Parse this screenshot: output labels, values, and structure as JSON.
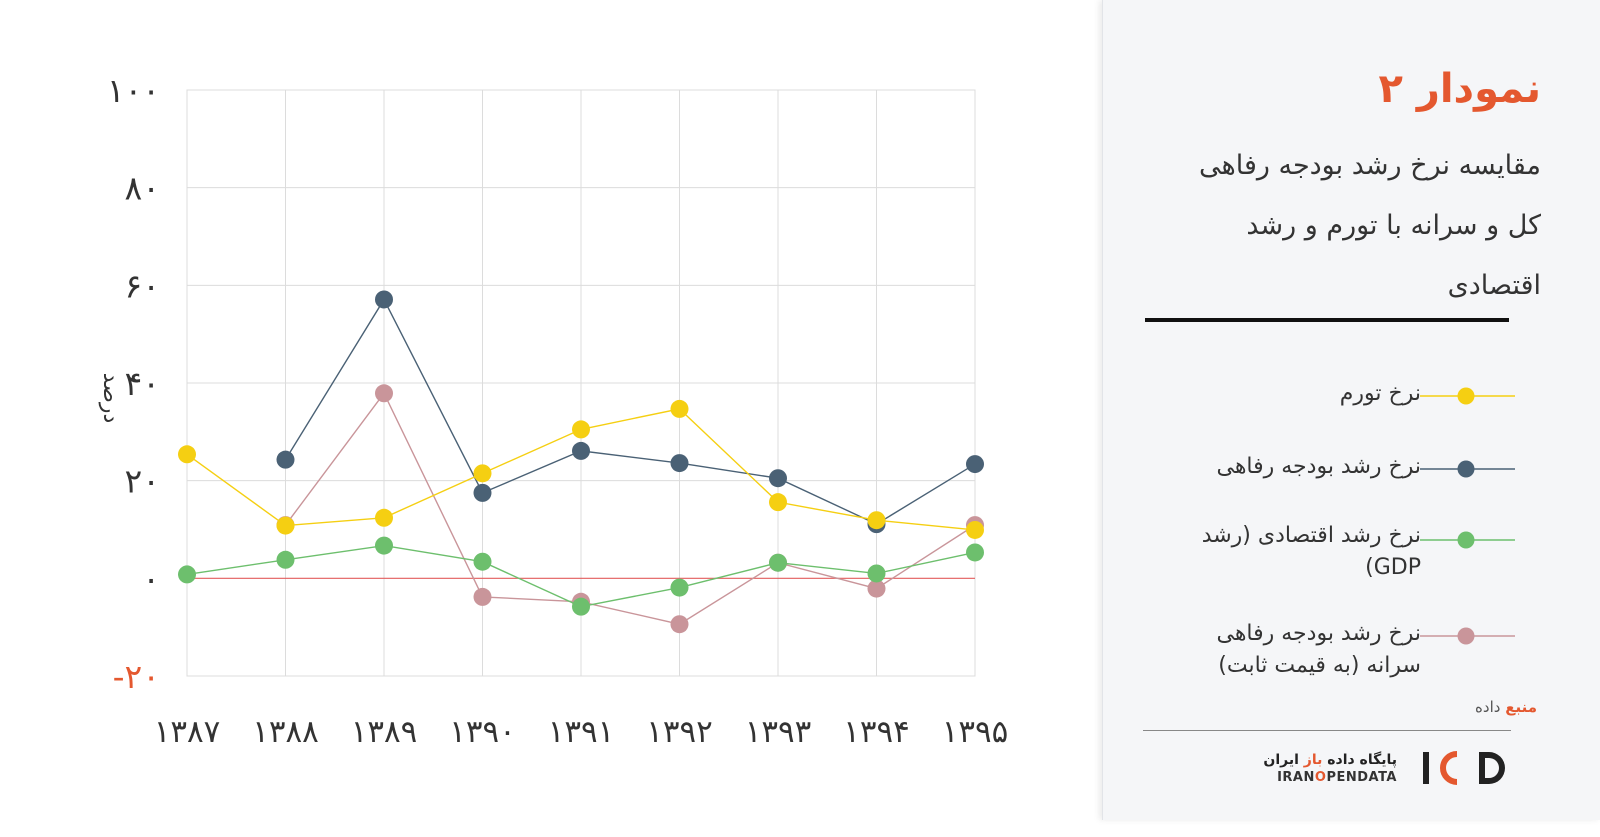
{
  "header": {
    "title": "نمودار ۲",
    "subtitle": "مقایسه نرخ رشد بودجه رفاهی کل و سرانه با تورم و رشد اقتصادی"
  },
  "legend": {
    "items": [
      {
        "label": "نرخ تورم",
        "color": "#f5cf12"
      },
      {
        "label": "نرخ رشد بودجه رفاهی",
        "color": "#4a6175"
      },
      {
        "label": "نرخ رشد اقتصادی (رشد GDP)",
        "color": "#6dbf6d"
      },
      {
        "label": "نرخ رشد بودجه رفاهی سرانه (به قیمت ثابت)",
        "color": "#c9959a"
      }
    ]
  },
  "source": {
    "prefix": "منبع",
    "text": "داده"
  },
  "logo": {
    "fa_pre": "پایگاه داده",
    "fa_accent": "باز",
    "fa_post": "ایران",
    "en_pre": "IRAN",
    "en_accent": "O",
    "en_post": "PENDATA",
    "mark": "IOD"
  },
  "chart_data": {
    "type": "line",
    "title": "",
    "xlabel": "",
    "ylabel": "درصد",
    "categories": [
      "۱۳۸۷",
      "۱۳۸۸",
      "۱۳۸۹",
      "۱۳۹۰",
      "۱۳۹۱",
      "۱۳۹۲",
      "۱۳۹۳",
      "۱۳۹۴",
      "۱۳۹۵"
    ],
    "ylim": [
      -20,
      100
    ],
    "yticks": [
      100,
      80,
      60,
      40,
      20,
      0,
      -20
    ],
    "ytick_labels": [
      "۱۰۰",
      "۸۰",
      "۶۰",
      "۴۰",
      "۲۰",
      "۰",
      "-۲۰"
    ],
    "negative_tick_color": "#e4582f",
    "zero_line_color": "#e35d5d",
    "grid": true,
    "series": [
      {
        "name": "نرخ تورم",
        "color": "#f5cf12",
        "values": [
          25.4,
          10.8,
          12.4,
          21.5,
          30.5,
          34.7,
          15.6,
          11.9,
          9.9
        ]
      },
      {
        "name": "نرخ رشد بودجه رفاهی",
        "color": "#4a6175",
        "values": [
          null,
          24.3,
          57.1,
          17.5,
          26.1,
          23.6,
          20.5,
          11.1,
          23.4
        ]
      },
      {
        "name": "نرخ رشد اقتصادی (رشد GDP)",
        "color": "#6dbf6d",
        "values": [
          0.8,
          3.8,
          6.7,
          3.4,
          -5.8,
          -1.9,
          3.2,
          1.0,
          5.3
        ]
      },
      {
        "name": "نرخ رشد بودجه رفاهی سرانه (به قیمت ثابت)",
        "color": "#c9959a",
        "values": [
          null,
          10.9,
          37.9,
          -3.8,
          -4.8,
          -9.4,
          3.2,
          -2.1,
          10.9
        ]
      }
    ]
  }
}
